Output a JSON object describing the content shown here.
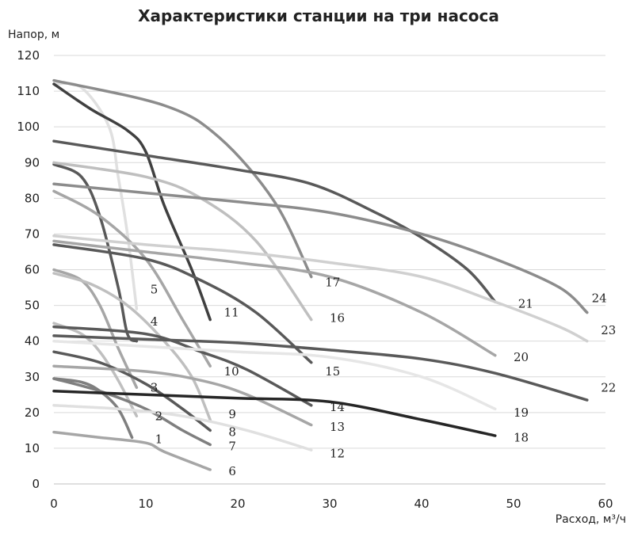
{
  "chart_data": {
    "type": "line",
    "title": "Характеристики станции на три насоса",
    "ylabel": "Напор, м",
    "xlabel": "Расход, м³/ч",
    "xlim": [
      0,
      60
    ],
    "ylim": [
      0,
      120
    ],
    "xticks": [
      0,
      10,
      20,
      30,
      40,
      50,
      60
    ],
    "yticks": [
      0,
      10,
      20,
      30,
      40,
      50,
      60,
      70,
      80,
      90,
      100,
      110,
      120
    ],
    "grid": "horizontal",
    "series": [
      {
        "name": "1",
        "color": "#7f7f7f",
        "points": [
          [
            0,
            29.5
          ],
          [
            3,
            28.5
          ],
          [
            5,
            26
          ],
          [
            7,
            21
          ],
          [
            8.5,
            13
          ]
        ]
      },
      {
        "name": "2",
        "color": "#bfbfbf",
        "points": [
          [
            0,
            45
          ],
          [
            3,
            42
          ],
          [
            5,
            37
          ],
          [
            7,
            29
          ],
          [
            9,
            19
          ]
        ]
      },
      {
        "name": "3",
        "color": "#a6a6a6",
        "points": [
          [
            0,
            60
          ],
          [
            3,
            57
          ],
          [
            5,
            50
          ],
          [
            7,
            38
          ],
          [
            9,
            27
          ]
        ]
      },
      {
        "name": "4",
        "color": "#595959",
        "points": [
          [
            0,
            89.5
          ],
          [
            3,
            86
          ],
          [
            5,
            75
          ],
          [
            7,
            55
          ],
          [
            8,
            42
          ],
          [
            9,
            40
          ]
        ]
      },
      {
        "name": "5",
        "color": "#e0e0e0",
        "points": [
          [
            0,
            112
          ],
          [
            3,
            111
          ],
          [
            6,
            100
          ],
          [
            7,
            86
          ],
          [
            8,
            70
          ],
          [
            9,
            49
          ]
        ]
      },
      {
        "name": "6",
        "color": "#a6a6a6",
        "points": [
          [
            0,
            14.5
          ],
          [
            5,
            13
          ],
          [
            10,
            11.5
          ],
          [
            12,
            9
          ],
          [
            17,
            4
          ]
        ]
      },
      {
        "name": "7",
        "color": "#7f7f7f",
        "points": [
          [
            0,
            29.5
          ],
          [
            5,
            26
          ],
          [
            10,
            21
          ],
          [
            14,
            15
          ],
          [
            17,
            11
          ]
        ]
      },
      {
        "name": "8",
        "color": "#595959",
        "points": [
          [
            0,
            37
          ],
          [
            5,
            34
          ],
          [
            10,
            28
          ],
          [
            14,
            21
          ],
          [
            17,
            15
          ]
        ]
      },
      {
        "name": "9",
        "color": "#bfbfbf",
        "points": [
          [
            0,
            59
          ],
          [
            4,
            56
          ],
          [
            8,
            50
          ],
          [
            12,
            40
          ],
          [
            15,
            30
          ],
          [
            17,
            18
          ]
        ]
      },
      {
        "name": "10",
        "color": "#a6a6a6",
        "points": [
          [
            0,
            82
          ],
          [
            5,
            75
          ],
          [
            10,
            63
          ],
          [
            14,
            46
          ],
          [
            17,
            33
          ]
        ]
      },
      {
        "name": "11",
        "color": "#404040",
        "points": [
          [
            0,
            112
          ],
          [
            4,
            105
          ],
          [
            8,
            99
          ],
          [
            10,
            93
          ],
          [
            12,
            78
          ],
          [
            15,
            60
          ],
          [
            17,
            46
          ]
        ]
      },
      {
        "name": "12",
        "color": "#e0e0e0",
        "points": [
          [
            0,
            22
          ],
          [
            7,
            21
          ],
          [
            14,
            19
          ],
          [
            21,
            15
          ],
          [
            28,
            9.5
          ]
        ]
      },
      {
        "name": "13",
        "color": "#a6a6a6",
        "points": [
          [
            0,
            33
          ],
          [
            10,
            31.5
          ],
          [
            16,
            29
          ],
          [
            21,
            25
          ],
          [
            28,
            16.5
          ]
        ]
      },
      {
        "name": "14",
        "color": "#595959",
        "points": [
          [
            0,
            44
          ],
          [
            10,
            42
          ],
          [
            16,
            37
          ],
          [
            21,
            32
          ],
          [
            28,
            22
          ]
        ]
      },
      {
        "name": "15",
        "color": "#595959",
        "points": [
          [
            0,
            67
          ],
          [
            10,
            63
          ],
          [
            16,
            57
          ],
          [
            22,
            48
          ],
          [
            28,
            34
          ]
        ]
      },
      {
        "name": "16",
        "color": "#bfbfbf",
        "points": [
          [
            0,
            90
          ],
          [
            10,
            86
          ],
          [
            16,
            80
          ],
          [
            22,
            68
          ],
          [
            28,
            46
          ]
        ]
      },
      {
        "name": "17",
        "color": "#8c8c8c",
        "points": [
          [
            0,
            113
          ],
          [
            12,
            106
          ],
          [
            18,
            97
          ],
          [
            24,
            79
          ],
          [
            28,
            58
          ]
        ]
      },
      {
        "name": "18",
        "color": "#262626",
        "points": [
          [
            0,
            26
          ],
          [
            10,
            25
          ],
          [
            20,
            24
          ],
          [
            30,
            23
          ],
          [
            40,
            18
          ],
          [
            48,
            13.5
          ]
        ]
      },
      {
        "name": "19",
        "color": "#e6e6e6",
        "points": [
          [
            0,
            40
          ],
          [
            10,
            38.5
          ],
          [
            20,
            37
          ],
          [
            30,
            35.5
          ],
          [
            40,
            30
          ],
          [
            48,
            21
          ]
        ]
      },
      {
        "name": "20",
        "color": "#a6a6a6",
        "points": [
          [
            0,
            68
          ],
          [
            10,
            65
          ],
          [
            20,
            62
          ],
          [
            30,
            58
          ],
          [
            40,
            48
          ],
          [
            48,
            36
          ]
        ]
      },
      {
        "name": "21",
        "color": "#595959",
        "points": [
          [
            0,
            96
          ],
          [
            10,
            92
          ],
          [
            20,
            88
          ],
          [
            28,
            84
          ],
          [
            35,
            76
          ],
          [
            40,
            69
          ],
          [
            45,
            60
          ],
          [
            48,
            51
          ]
        ]
      },
      {
        "name": "22",
        "color": "#595959",
        "points": [
          [
            0,
            41.5
          ],
          [
            10,
            40.5
          ],
          [
            20,
            39.5
          ],
          [
            30,
            37.5
          ],
          [
            40,
            35
          ],
          [
            48,
            31
          ],
          [
            58,
            23.5
          ]
        ]
      },
      {
        "name": "23",
        "color": "#d0d0d0",
        "points": [
          [
            0,
            69.5
          ],
          [
            10,
            67
          ],
          [
            20,
            65
          ],
          [
            30,
            62
          ],
          [
            40,
            58
          ],
          [
            48,
            51
          ],
          [
            55,
            44
          ],
          [
            58,
            40
          ]
        ]
      },
      {
        "name": "24",
        "color": "#8c8c8c",
        "points": [
          [
            0,
            84
          ],
          [
            10,
            81.5
          ],
          [
            20,
            79
          ],
          [
            30,
            76
          ],
          [
            40,
            70
          ],
          [
            48,
            63
          ],
          [
            55,
            55
          ],
          [
            58,
            48
          ]
        ]
      }
    ],
    "curve_labels": [
      {
        "text": "1",
        "x": 11,
        "y": 12.5
      },
      {
        "text": "2",
        "x": 11,
        "y": 19
      },
      {
        "text": "3",
        "x": 10.5,
        "y": 27
      },
      {
        "text": "4",
        "x": 10.5,
        "y": 45.5
      },
      {
        "text": "5",
        "x": 10.5,
        "y": 54.5
      },
      {
        "text": "6",
        "x": 19,
        "y": 3.5
      },
      {
        "text": "7",
        "x": 19,
        "y": 10.5
      },
      {
        "text": "8",
        "x": 19,
        "y": 14.5
      },
      {
        "text": "9",
        "x": 19,
        "y": 19.5
      },
      {
        "text": "10",
        "x": 18.5,
        "y": 31.5
      },
      {
        "text": "11",
        "x": 18.5,
        "y": 48
      },
      {
        "text": "12",
        "x": 30,
        "y": 8.5
      },
      {
        "text": "13",
        "x": 30,
        "y": 16
      },
      {
        "text": "14",
        "x": 30,
        "y": 21.5
      },
      {
        "text": "15",
        "x": 29.5,
        "y": 31.5
      },
      {
        "text": "16",
        "x": 30,
        "y": 46.5
      },
      {
        "text": "17",
        "x": 29.5,
        "y": 56.5
      },
      {
        "text": "18",
        "x": 50,
        "y": 13
      },
      {
        "text": "19",
        "x": 50,
        "y": 20
      },
      {
        "text": "20",
        "x": 50,
        "y": 35.5
      },
      {
        "text": "21",
        "x": 50.5,
        "y": 50.5
      },
      {
        "text": "22",
        "x": 59.5,
        "y": 27
      },
      {
        "text": "23",
        "x": 59.5,
        "y": 43
      },
      {
        "text": "24",
        "x": 58.5,
        "y": 52
      }
    ]
  }
}
